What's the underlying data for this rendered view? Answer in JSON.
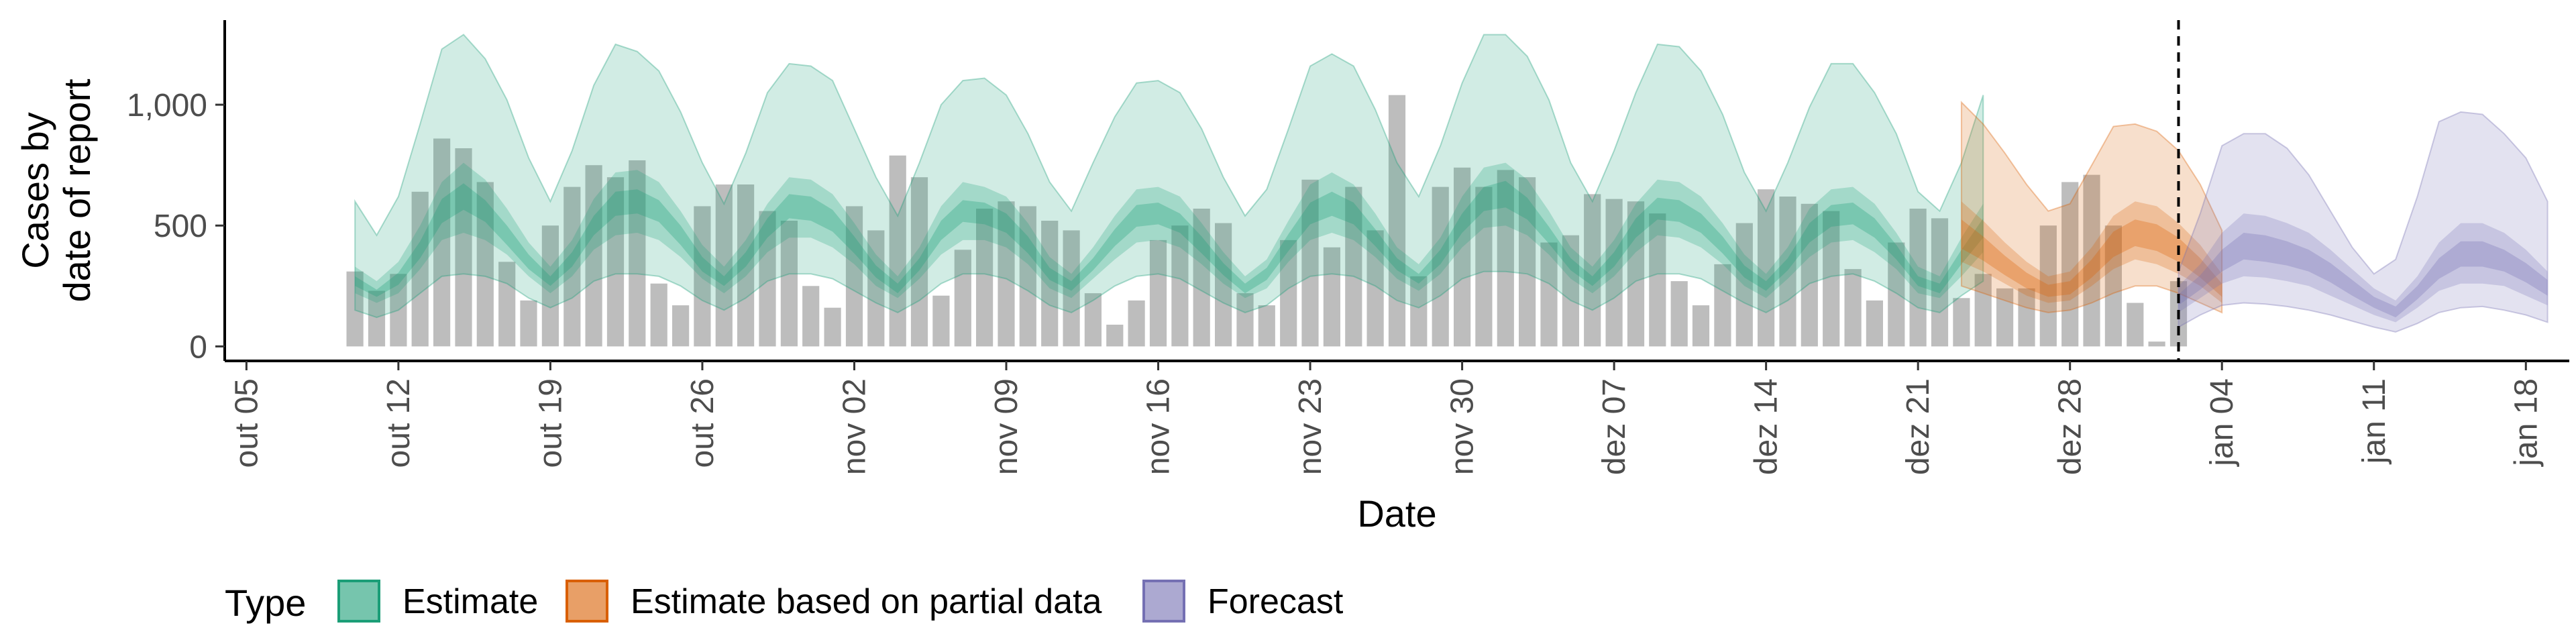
{
  "chart_data": {
    "type": "bar",
    "title": "",
    "xlabel": "Date",
    "ylabel_line1": "Cases by",
    "ylabel_line2": "date of report",
    "x_axis": {
      "type": "date",
      "start": "2020-10-04",
      "end": "2021-01-20"
    },
    "ylim": [
      -60,
      1350
    ],
    "y_ticks": [
      {
        "value": 0,
        "label": "0"
      },
      {
        "value": 500,
        "label": "500"
      },
      {
        "value": 1000,
        "label": "1,000"
      }
    ],
    "x_ticks": [
      {
        "date": "2020-10-05",
        "label": "out 05"
      },
      {
        "date": "2020-10-12",
        "label": "out 12"
      },
      {
        "date": "2020-10-19",
        "label": "out 19"
      },
      {
        "date": "2020-10-26",
        "label": "out 26"
      },
      {
        "date": "2020-11-02",
        "label": "nov 02"
      },
      {
        "date": "2020-11-09",
        "label": "nov 09"
      },
      {
        "date": "2020-11-16",
        "label": "nov 16"
      },
      {
        "date": "2020-11-23",
        "label": "nov 23"
      },
      {
        "date": "2020-11-30",
        "label": "nov 30"
      },
      {
        "date": "2020-12-07",
        "label": "dez 07"
      },
      {
        "date": "2020-12-14",
        "label": "dez 14"
      },
      {
        "date": "2020-12-21",
        "label": "dez 21"
      },
      {
        "date": "2020-12-28",
        "label": "dez 28"
      },
      {
        "date": "2021-01-04",
        "label": "jan 04"
      },
      {
        "date": "2021-01-11",
        "label": "jan 11"
      },
      {
        "date": "2021-01-18",
        "label": "jan 18"
      }
    ],
    "vline_date": "2021-01-02",
    "bars": {
      "start": "2020-10-10",
      "color": "#bdbdbd",
      "values": [
        310,
        230,
        300,
        640,
        860,
        820,
        680,
        350,
        190,
        500,
        660,
        750,
        700,
        770,
        260,
        170,
        580,
        670,
        670,
        560,
        520,
        250,
        160,
        580,
        480,
        790,
        700,
        210,
        400,
        570,
        600,
        580,
        520,
        480,
        220,
        90,
        190,
        440,
        500,
        570,
        510,
        220,
        170,
        440,
        690,
        410,
        660,
        480,
        1040,
        290,
        660,
        740,
        660,
        730,
        700,
        430,
        460,
        630,
        610,
        600,
        550,
        270,
        170,
        340,
        510,
        650,
        620,
        590,
        560,
        320,
        190,
        430,
        570,
        530,
        200,
        300,
        240,
        240,
        500,
        680,
        710,
        500,
        180,
        20,
        270
      ]
    },
    "series": [
      {
        "name": "Estimate",
        "color": "#1b9e77",
        "start": "2020-10-10",
        "median": [
          270,
          220,
          280,
          400,
          560,
          620,
          560,
          460,
          350,
          270,
          360,
          500,
          590,
          600,
          560,
          460,
          340,
          270,
          360,
          490,
          580,
          570,
          520,
          420,
          310,
          240,
          340,
          480,
          560,
          550,
          510,
          420,
          300,
          250,
          340,
          450,
          540,
          550,
          510,
          420,
          320,
          240,
          300,
          430,
          550,
          590,
          550,
          450,
          340,
          280,
          370,
          510,
          610,
          630,
          570,
          460,
          340,
          270,
          360,
          490,
          570,
          560,
          510,
          420,
          310,
          250,
          340,
          470,
          540,
          550,
          490,
          390,
          270,
          240,
          370,
          490
        ],
        "lower90": [
          150,
          120,
          150,
          220,
          290,
          300,
          290,
          260,
          200,
          160,
          200,
          270,
          300,
          300,
          290,
          250,
          190,
          150,
          200,
          270,
          300,
          300,
          280,
          230,
          180,
          140,
          190,
          260,
          300,
          300,
          280,
          230,
          170,
          140,
          190,
          250,
          290,
          300,
          280,
          230,
          180,
          140,
          170,
          240,
          290,
          300,
          290,
          250,
          190,
          160,
          210,
          280,
          310,
          310,
          300,
          260,
          190,
          150,
          200,
          270,
          300,
          300,
          280,
          230,
          180,
          140,
          190,
          260,
          290,
          300,
          270,
          220,
          160,
          140,
          210,
          270
        ],
        "upper90": [
          600,
          460,
          620,
          920,
          1230,
          1290,
          1190,
          1020,
          780,
          600,
          810,
          1080,
          1250,
          1220,
          1140,
          970,
          760,
          590,
          800,
          1050,
          1170,
          1160,
          1100,
          900,
          700,
          540,
          760,
          1000,
          1100,
          1110,
          1040,
          880,
          680,
          560,
          760,
          950,
          1090,
          1100,
          1050,
          900,
          700,
          540,
          650,
          900,
          1160,
          1210,
          1160,
          980,
          760,
          620,
          830,
          1090,
          1290,
          1290,
          1200,
          1020,
          760,
          600,
          810,
          1050,
          1250,
          1240,
          1140,
          960,
          720,
          560,
          760,
          990,
          1170,
          1170,
          1050,
          880,
          640,
          560,
          760,
          1040
        ],
        "lower50": [
          220,
          180,
          220,
          320,
          440,
          470,
          440,
          380,
          290,
          220,
          290,
          400,
          460,
          470,
          440,
          370,
          280,
          220,
          290,
          390,
          450,
          450,
          410,
          340,
          250,
          200,
          280,
          380,
          440,
          440,
          410,
          340,
          240,
          200,
          280,
          360,
          430,
          440,
          410,
          340,
          260,
          200,
          240,
          350,
          440,
          470,
          440,
          370,
          280,
          230,
          300,
          410,
          490,
          500,
          460,
          380,
          280,
          220,
          290,
          390,
          460,
          450,
          410,
          340,
          250,
          200,
          280,
          370,
          430,
          440,
          390,
          320,
          220,
          200,
          290,
          390
        ],
        "upper50": [
          330,
          270,
          350,
          500,
          680,
          760,
          690,
          570,
          430,
          330,
          440,
          610,
          720,
          730,
          680,
          560,
          420,
          330,
          440,
          590,
          700,
          690,
          630,
          510,
          380,
          290,
          410,
          580,
          680,
          660,
          620,
          510,
          370,
          300,
          410,
          540,
          650,
          660,
          620,
          510,
          390,
          290,
          360,
          520,
          670,
          720,
          670,
          550,
          410,
          340,
          450,
          620,
          740,
          760,
          690,
          560,
          410,
          330,
          440,
          590,
          690,
          680,
          620,
          510,
          380,
          300,
          410,
          570,
          650,
          660,
          590,
          470,
          330,
          290,
          450,
          590
        ],
        "lower20": [
          250,
          205,
          255,
          365,
          510,
          565,
          515,
          420,
          320,
          250,
          330,
          460,
          540,
          550,
          515,
          420,
          310,
          250,
          330,
          450,
          530,
          520,
          475,
          385,
          285,
          220,
          315,
          440,
          515,
          505,
          470,
          385,
          275,
          230,
          315,
          415,
          495,
          505,
          470,
          385,
          295,
          220,
          275,
          395,
          505,
          540,
          505,
          415,
          315,
          260,
          340,
          470,
          560,
          575,
          525,
          425,
          315,
          250,
          330,
          450,
          525,
          515,
          470,
          385,
          285,
          230,
          315,
          430,
          495,
          505,
          450,
          360,
          250,
          220,
          340,
          450
        ],
        "upper20": [
          290,
          235,
          305,
          435,
          610,
          675,
          605,
          500,
          380,
          290,
          390,
          540,
          640,
          650,
          605,
          500,
          370,
          290,
          390,
          530,
          630,
          620,
          565,
          455,
          335,
          260,
          365,
          520,
          605,
          595,
          550,
          455,
          325,
          270,
          365,
          485,
          585,
          595,
          550,
          455,
          345,
          260,
          325,
          465,
          595,
          640,
          595,
          485,
          365,
          300,
          400,
          550,
          660,
          685,
          615,
          495,
          365,
          290,
          390,
          530,
          615,
          605,
          550,
          455,
          335,
          270,
          365,
          510,
          585,
          595,
          530,
          420,
          290,
          260,
          400,
          530
        ]
      },
      {
        "name": "Estimate based on partial data",
        "color": "#d95f02",
        "start": "2020-12-23",
        "median": [
          460,
          400,
          330,
          270,
          230,
          240,
          320,
          420,
          470,
          450,
          400,
          320,
          230
        ],
        "lower90": [
          250,
          220,
          190,
          160,
          140,
          150,
          180,
          220,
          250,
          250,
          220,
          180,
          140
        ],
        "upper90": [
          1010,
          920,
          800,
          670,
          560,
          590,
          750,
          910,
          920,
          890,
          810,
          670,
          480
        ],
        "lower50": [
          350,
          310,
          260,
          210,
          180,
          190,
          250,
          320,
          360,
          340,
          300,
          250,
          180
        ],
        "upper50": [
          600,
          520,
          430,
          350,
          290,
          310,
          410,
          540,
          600,
          580,
          510,
          420,
          300
        ],
        "lower20": [
          405,
          355,
          295,
          240,
          205,
          215,
          285,
          370,
          415,
          395,
          350,
          285,
          205
        ],
        "upper20": [
          525,
          455,
          375,
          305,
          255,
          270,
          360,
          475,
          525,
          505,
          450,
          365,
          260
        ]
      },
      {
        "name": "Forecast",
        "color": "#7570b3",
        "start": "2021-01-02",
        "median": [
          190,
          260,
          350,
          410,
          400,
          380,
          350,
          300,
          240,
          180,
          140,
          220,
          320,
          380,
          380,
          350,
          300,
          240
        ],
        "lower90": [
          80,
          130,
          170,
          180,
          175,
          165,
          150,
          130,
          105,
          80,
          60,
          95,
          140,
          160,
          165,
          150,
          130,
          100
        ],
        "upper90": [
          310,
          550,
          830,
          880,
          880,
          820,
          710,
          560,
          410,
          300,
          360,
          620,
          930,
          970,
          960,
          880,
          780,
          600
        ],
        "lower50": [
          140,
          200,
          260,
          290,
          285,
          270,
          250,
          210,
          170,
          130,
          100,
          160,
          230,
          260,
          260,
          250,
          210,
          170
        ],
        "upper50": [
          250,
          340,
          470,
          550,
          540,
          510,
          470,
          400,
          320,
          240,
          190,
          290,
          430,
          510,
          510,
          470,
          400,
          310
        ],
        "lower20": [
          170,
          235,
          310,
          360,
          350,
          335,
          310,
          265,
          210,
          160,
          120,
          195,
          280,
          330,
          330,
          310,
          265,
          210
        ],
        "upper20": [
          215,
          295,
          400,
          470,
          460,
          435,
          400,
          345,
          275,
          205,
          165,
          250,
          365,
          435,
          435,
          400,
          345,
          275
        ]
      }
    ],
    "legend": {
      "position": "bottom",
      "title": "Type"
    }
  }
}
